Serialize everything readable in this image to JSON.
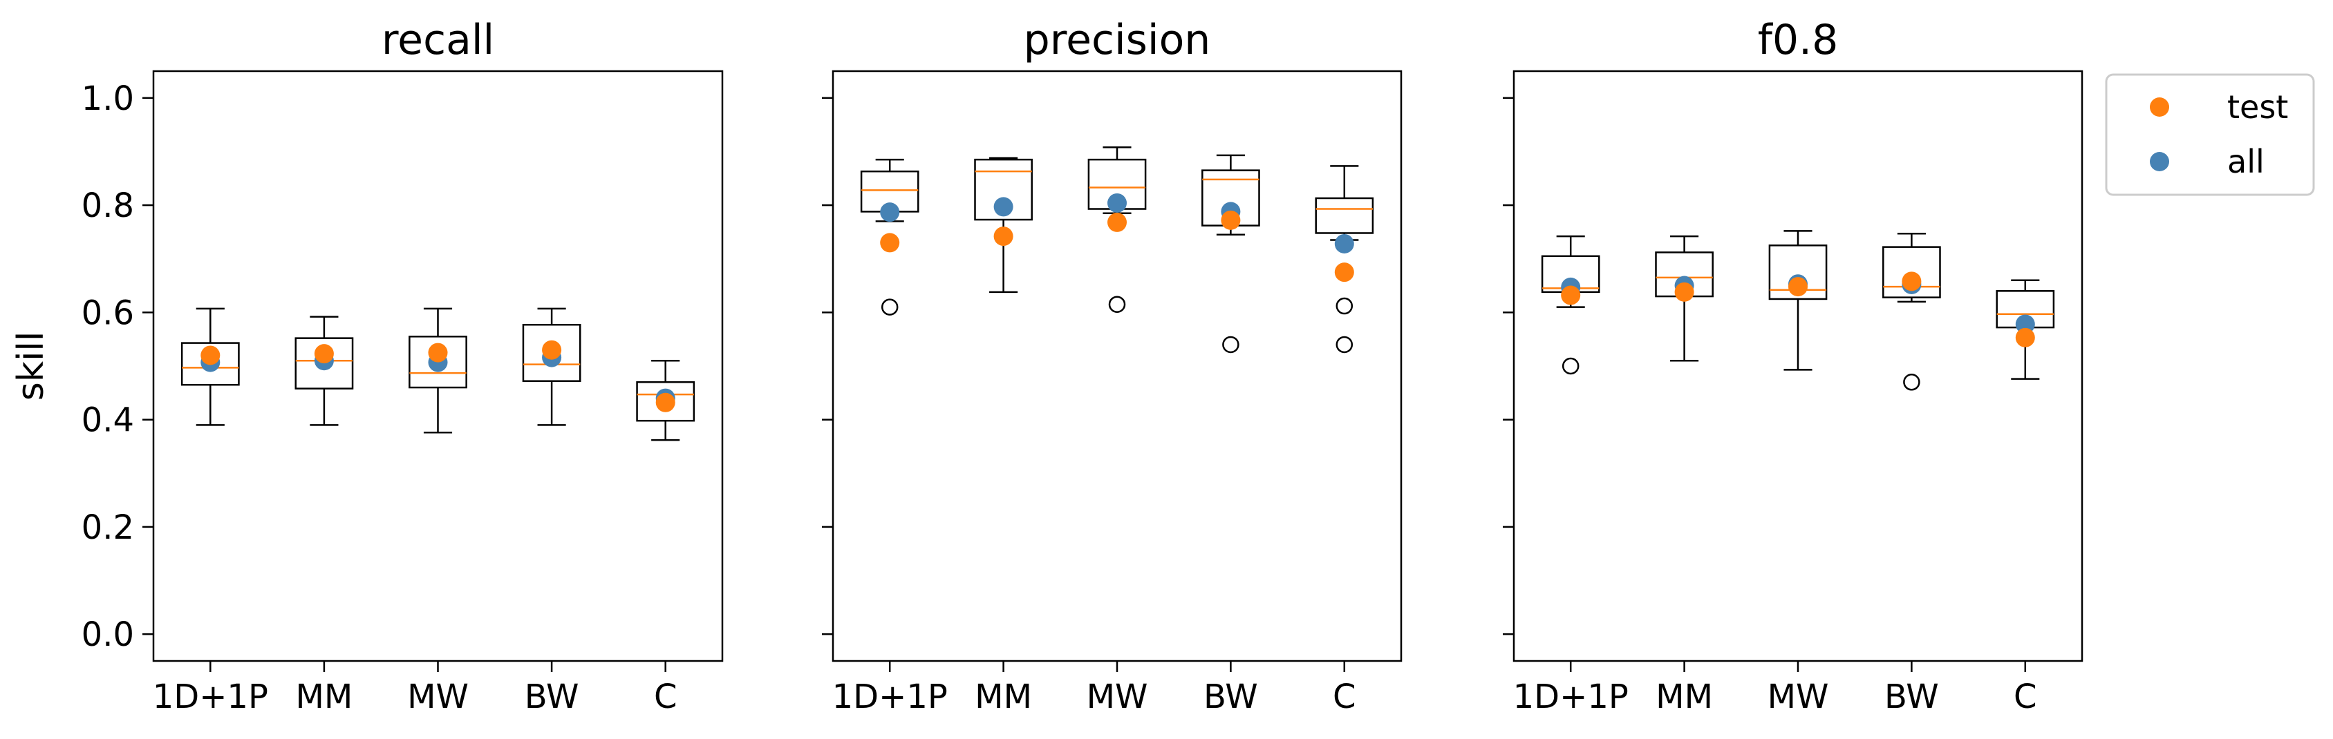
{
  "chart_data": [
    {
      "type": "box",
      "title": "recall",
      "ylabel": "skill",
      "ylim": [
        -0.05,
        1.05
      ],
      "yticks": [
        "0.0",
        "0.2",
        "0.4",
        "0.6",
        "0.8",
        "1.0"
      ],
      "categories": [
        "1D+1P",
        "MM",
        "MW",
        "BW",
        "C"
      ],
      "boxes": [
        {
          "whislo": 0.39,
          "q1": 0.465,
          "med": 0.497,
          "q3": 0.543,
          "whishi": 0.607,
          "fliers": []
        },
        {
          "whislo": 0.39,
          "q1": 0.458,
          "med": 0.51,
          "q3": 0.552,
          "whishi": 0.592,
          "fliers": []
        },
        {
          "whislo": 0.376,
          "q1": 0.46,
          "med": 0.487,
          "q3": 0.555,
          "whishi": 0.607,
          "fliers": []
        },
        {
          "whislo": 0.39,
          "q1": 0.472,
          "med": 0.503,
          "q3": 0.577,
          "whishi": 0.607,
          "fliers": []
        },
        {
          "whislo": 0.362,
          "q1": 0.398,
          "med": 0.447,
          "q3": 0.47,
          "whishi": 0.51,
          "fliers": []
        }
      ],
      "series": [
        {
          "name": "all",
          "values": [
            0.507,
            0.51,
            0.507,
            0.516,
            0.44
          ]
        },
        {
          "name": "test",
          "values": [
            0.52,
            0.523,
            0.525,
            0.53,
            0.432
          ]
        }
      ]
    },
    {
      "type": "box",
      "title": "precision",
      "ylim": [
        -0.05,
        1.05
      ],
      "categories": [
        "1D+1P",
        "MM",
        "MW",
        "BW",
        "C"
      ],
      "boxes": [
        {
          "whislo": 0.77,
          "q1": 0.788,
          "med": 0.828,
          "q3": 0.863,
          "whishi": 0.885,
          "fliers": [
            0.61
          ]
        },
        {
          "whislo": 0.638,
          "q1": 0.773,
          "med": 0.863,
          "q3": 0.885,
          "whishi": 0.888,
          "fliers": []
        },
        {
          "whislo": 0.785,
          "q1": 0.793,
          "med": 0.833,
          "q3": 0.885,
          "whishi": 0.908,
          "fliers": [
            0.615
          ]
        },
        {
          "whislo": 0.745,
          "q1": 0.762,
          "med": 0.848,
          "q3": 0.865,
          "whishi": 0.893,
          "fliers": [
            0.54
          ]
        },
        {
          "whislo": 0.735,
          "q1": 0.748,
          "med": 0.793,
          "q3": 0.813,
          "whishi": 0.873,
          "fliers": [
            0.612,
            0.54
          ]
        }
      ],
      "series": [
        {
          "name": "all",
          "values": [
            0.787,
            0.797,
            0.804,
            0.788,
            0.728
          ]
        },
        {
          "name": "test",
          "values": [
            0.73,
            0.742,
            0.768,
            0.772,
            0.675
          ]
        }
      ]
    },
    {
      "type": "box",
      "title": "f0.8",
      "ylim": [
        -0.05,
        1.05
      ],
      "categories": [
        "1D+1P",
        "MM",
        "MW",
        "BW",
        "C"
      ],
      "boxes": [
        {
          "whislo": 0.61,
          "q1": 0.638,
          "med": 0.645,
          "q3": 0.705,
          "whishi": 0.742,
          "fliers": [
            0.5
          ]
        },
        {
          "whislo": 0.51,
          "q1": 0.63,
          "med": 0.665,
          "q3": 0.712,
          "whishi": 0.742,
          "fliers": []
        },
        {
          "whislo": 0.493,
          "q1": 0.625,
          "med": 0.642,
          "q3": 0.725,
          "whishi": 0.752,
          "fliers": []
        },
        {
          "whislo": 0.62,
          "q1": 0.628,
          "med": 0.648,
          "q3": 0.722,
          "whishi": 0.747,
          "fliers": [
            0.47
          ]
        },
        {
          "whislo": 0.476,
          "q1": 0.572,
          "med": 0.597,
          "q3": 0.64,
          "whishi": 0.66,
          "fliers": []
        }
      ],
      "series": [
        {
          "name": "all",
          "values": [
            0.647,
            0.65,
            0.653,
            0.652,
            0.578
          ]
        },
        {
          "name": "test",
          "values": [
            0.632,
            0.638,
            0.648,
            0.658,
            0.553
          ]
        }
      ]
    }
  ],
  "legend": {
    "placement": "outside-right-top",
    "entries": [
      {
        "name": "test",
        "color": "#ff7f0e"
      },
      {
        "name": "all",
        "color": "#4682b4"
      }
    ]
  },
  "colors": {
    "median": "#ff7f0e",
    "test": "#ff7f0e",
    "all": "#4682b4",
    "box": "#000000"
  }
}
